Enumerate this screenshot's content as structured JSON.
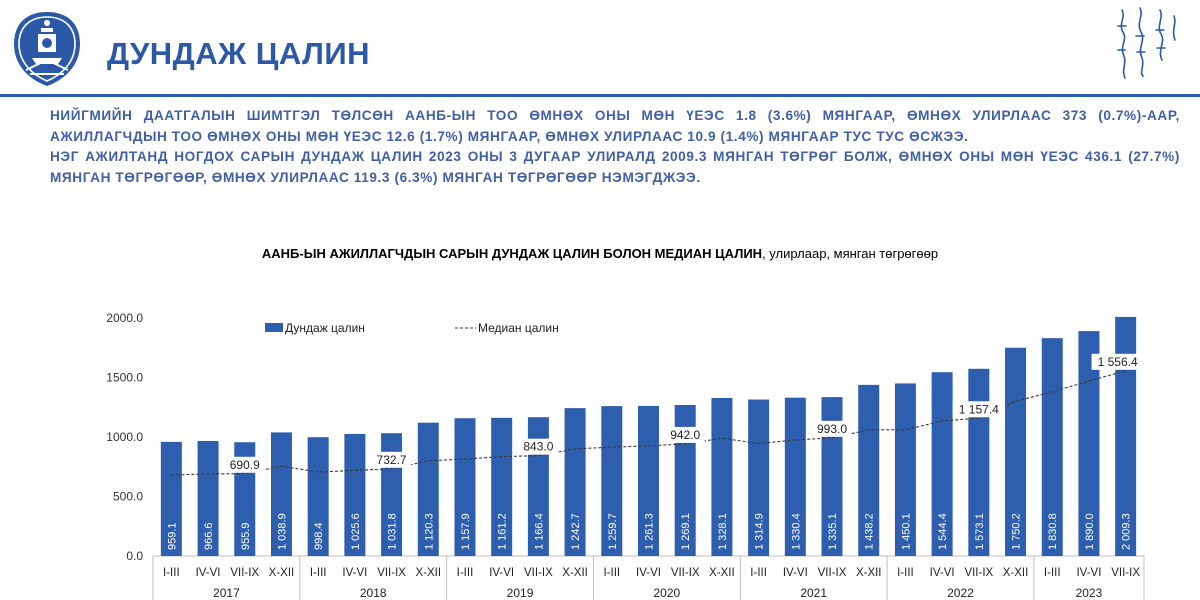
{
  "header": {
    "title": "ДУНДАЖ ЦАЛИН",
    "logo_icon": "mongolia-soyombo-emblem-icon",
    "script_icon": "mongolian-script-calligraphy-icon",
    "colors": {
      "primary": "#2b59a8",
      "bar": "#2e5fae"
    }
  },
  "summary": {
    "p1": "НИЙГМИЙН ДААТГАЛЫН ШИМТГЭЛ ТӨЛСӨН ААНБ-ЫН ТОО ӨМНӨХ ОНЫ МӨН ҮЕЭС 1.8 (3.6%) МЯНГААР, ӨМНӨХ УЛИРЛААС 373 (0.7%)-ААР, АЖИЛЛАГЧДЫН ТОО ӨМНӨХ ОНЫ МӨН ҮЕЭС 12.6 (1.7%) МЯНГААР, ӨМНӨХ УЛИРЛААС 10.9 (1.4%) МЯНГААР ТУС ТУС ӨСЖЭЭ.",
    "p2": "НЭГ АЖИЛТАНД НОГДОХ САРЫН ДУНДАЖ ЦАЛИН 2023 ОНЫ 3 ДУГААР УЛИРАЛД 2009.3 МЯНГАН ТӨГРӨГ БОЛЖ, ӨМНӨХ ОНЫ МӨН ҮЕЭС 436.1 (27.7%) МЯНГАН ТӨГРӨГӨӨР, ӨМНӨХ УЛИРЛААС 119.3 (6.3%) МЯНГАН ТӨГРӨГӨӨР НЭМЭГДЖЭЭ."
  },
  "chart_data": {
    "type": "bar",
    "title": "ААНБ-ЫН АЖИЛЛАГЧДЫН САРЫН ДУНДАЖ ЦАЛИН БОЛОН МЕДИАН ЦАЛИН",
    "subtitle": ", улирлаар, мянган төгрөгөөр",
    "ylim": [
      0,
      2000
    ],
    "yticks": [
      "0.0",
      "500.0",
      "1000.0",
      "1500.0",
      "2000.0"
    ],
    "categories": [
      "I-III",
      "IV-VI",
      "VII-IX",
      "X-XII",
      "I-III",
      "IV-VI",
      "VII-IX",
      "X-XII",
      "I-III",
      "IV-VI",
      "VII-IX",
      "X-XII",
      "I-III",
      "IV-VI",
      "VII-IX",
      "X-XII",
      "I-III",
      "IV-VI",
      "VII-IX",
      "X-XII",
      "I-III",
      "IV-VI",
      "VII-IX",
      "X-XII",
      "I-III",
      "IV-VI",
      "VII-IX"
    ],
    "years": [
      {
        "label": "2017",
        "count": 4
      },
      {
        "label": "2018",
        "count": 4
      },
      {
        "label": "2019",
        "count": 4
      },
      {
        "label": "2020",
        "count": 4
      },
      {
        "label": "2021",
        "count": 4
      },
      {
        "label": "2022",
        "count": 4
      },
      {
        "label": "2023",
        "count": 3
      }
    ],
    "legend": {
      "placement": "top-left"
    },
    "series": [
      {
        "name": "Дундаж цалин",
        "kind": "bar",
        "values": [
          959.1,
          966.6,
          955.9,
          1038.9,
          998.4,
          1025.6,
          1031.8,
          1120.3,
          1157.9,
          1161.2,
          1166.4,
          1242.7,
          1259.7,
          1261.3,
          1269.1,
          1328.1,
          1314.9,
          1330.4,
          1335.1,
          1438.2,
          1450.1,
          1544.4,
          1573.1,
          1750.2,
          1830.8,
          1890.0,
          2009.3
        ],
        "value_labels": [
          "959.1",
          "966.6",
          "955.9",
          "1 038.9",
          "998.4",
          "1 025.6",
          "1 031.8",
          "1 120.3",
          "1 157.9",
          "1 161.2",
          "1 166.4",
          "1 242.7",
          "1 259.7",
          "1 261.3",
          "1 269.1",
          "1 328.1",
          "1 314.9",
          "1 330.4",
          "1 335.1",
          "1 438.2",
          "1 450.1",
          "1 544.4",
          "1 573.1",
          "1 750.2",
          "1 830.8",
          "1 890.0",
          "2 009.3"
        ]
      },
      {
        "name": "Медиан цалин",
        "kind": "dashed-line",
        "values": [
          680,
          690,
          690.9,
          755,
          705,
          720,
          732.7,
          800,
          815,
          835,
          843,
          900,
          915,
          925,
          942,
          990,
          945,
          975,
          993,
          1060,
          1060,
          1135,
          1157.4,
          1300,
          1380,
          1470,
          1556.4
        ],
        "value_labels": [
          "690.9",
          "732.7",
          "843.0",
          "942.0",
          "993.0",
          "1 157.4",
          "1 556.4"
        ],
        "label_indices": [
          2,
          6,
          10,
          14,
          18,
          22,
          26
        ]
      }
    ]
  }
}
